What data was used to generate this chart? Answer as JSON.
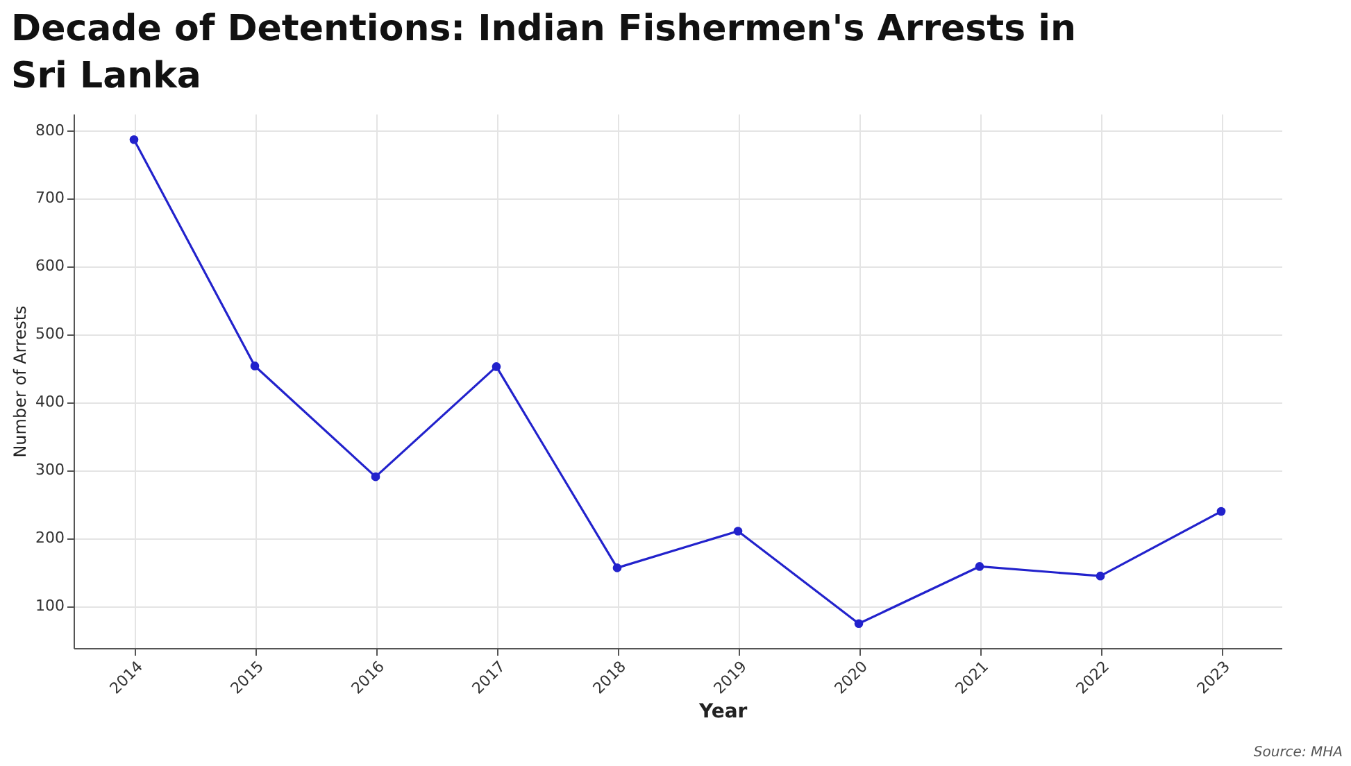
{
  "chart_data": {
    "type": "line",
    "title": "Decade of Detentions: Indian Fishermen's Arrests in Sri Lanka",
    "xlabel": "Year",
    "ylabel": "Number of Arrests",
    "categories": [
      "2014",
      "2015",
      "2016",
      "2017",
      "2018",
      "2019",
      "2020",
      "2021",
      "2022",
      "2023"
    ],
    "series": [
      {
        "color": "#2222cc",
        "values": [
          786,
          453,
          290,
          452,
          156,
          210,
          74,
          158,
          144,
          239
        ]
      }
    ],
    "ylim": [
      38,
      824
    ],
    "yticks": [
      100,
      200,
      300,
      400,
      500,
      600,
      700,
      800
    ],
    "grid": true,
    "marker": "circle",
    "line_style": "solid",
    "annotations": [
      "Source: MHA"
    ]
  }
}
